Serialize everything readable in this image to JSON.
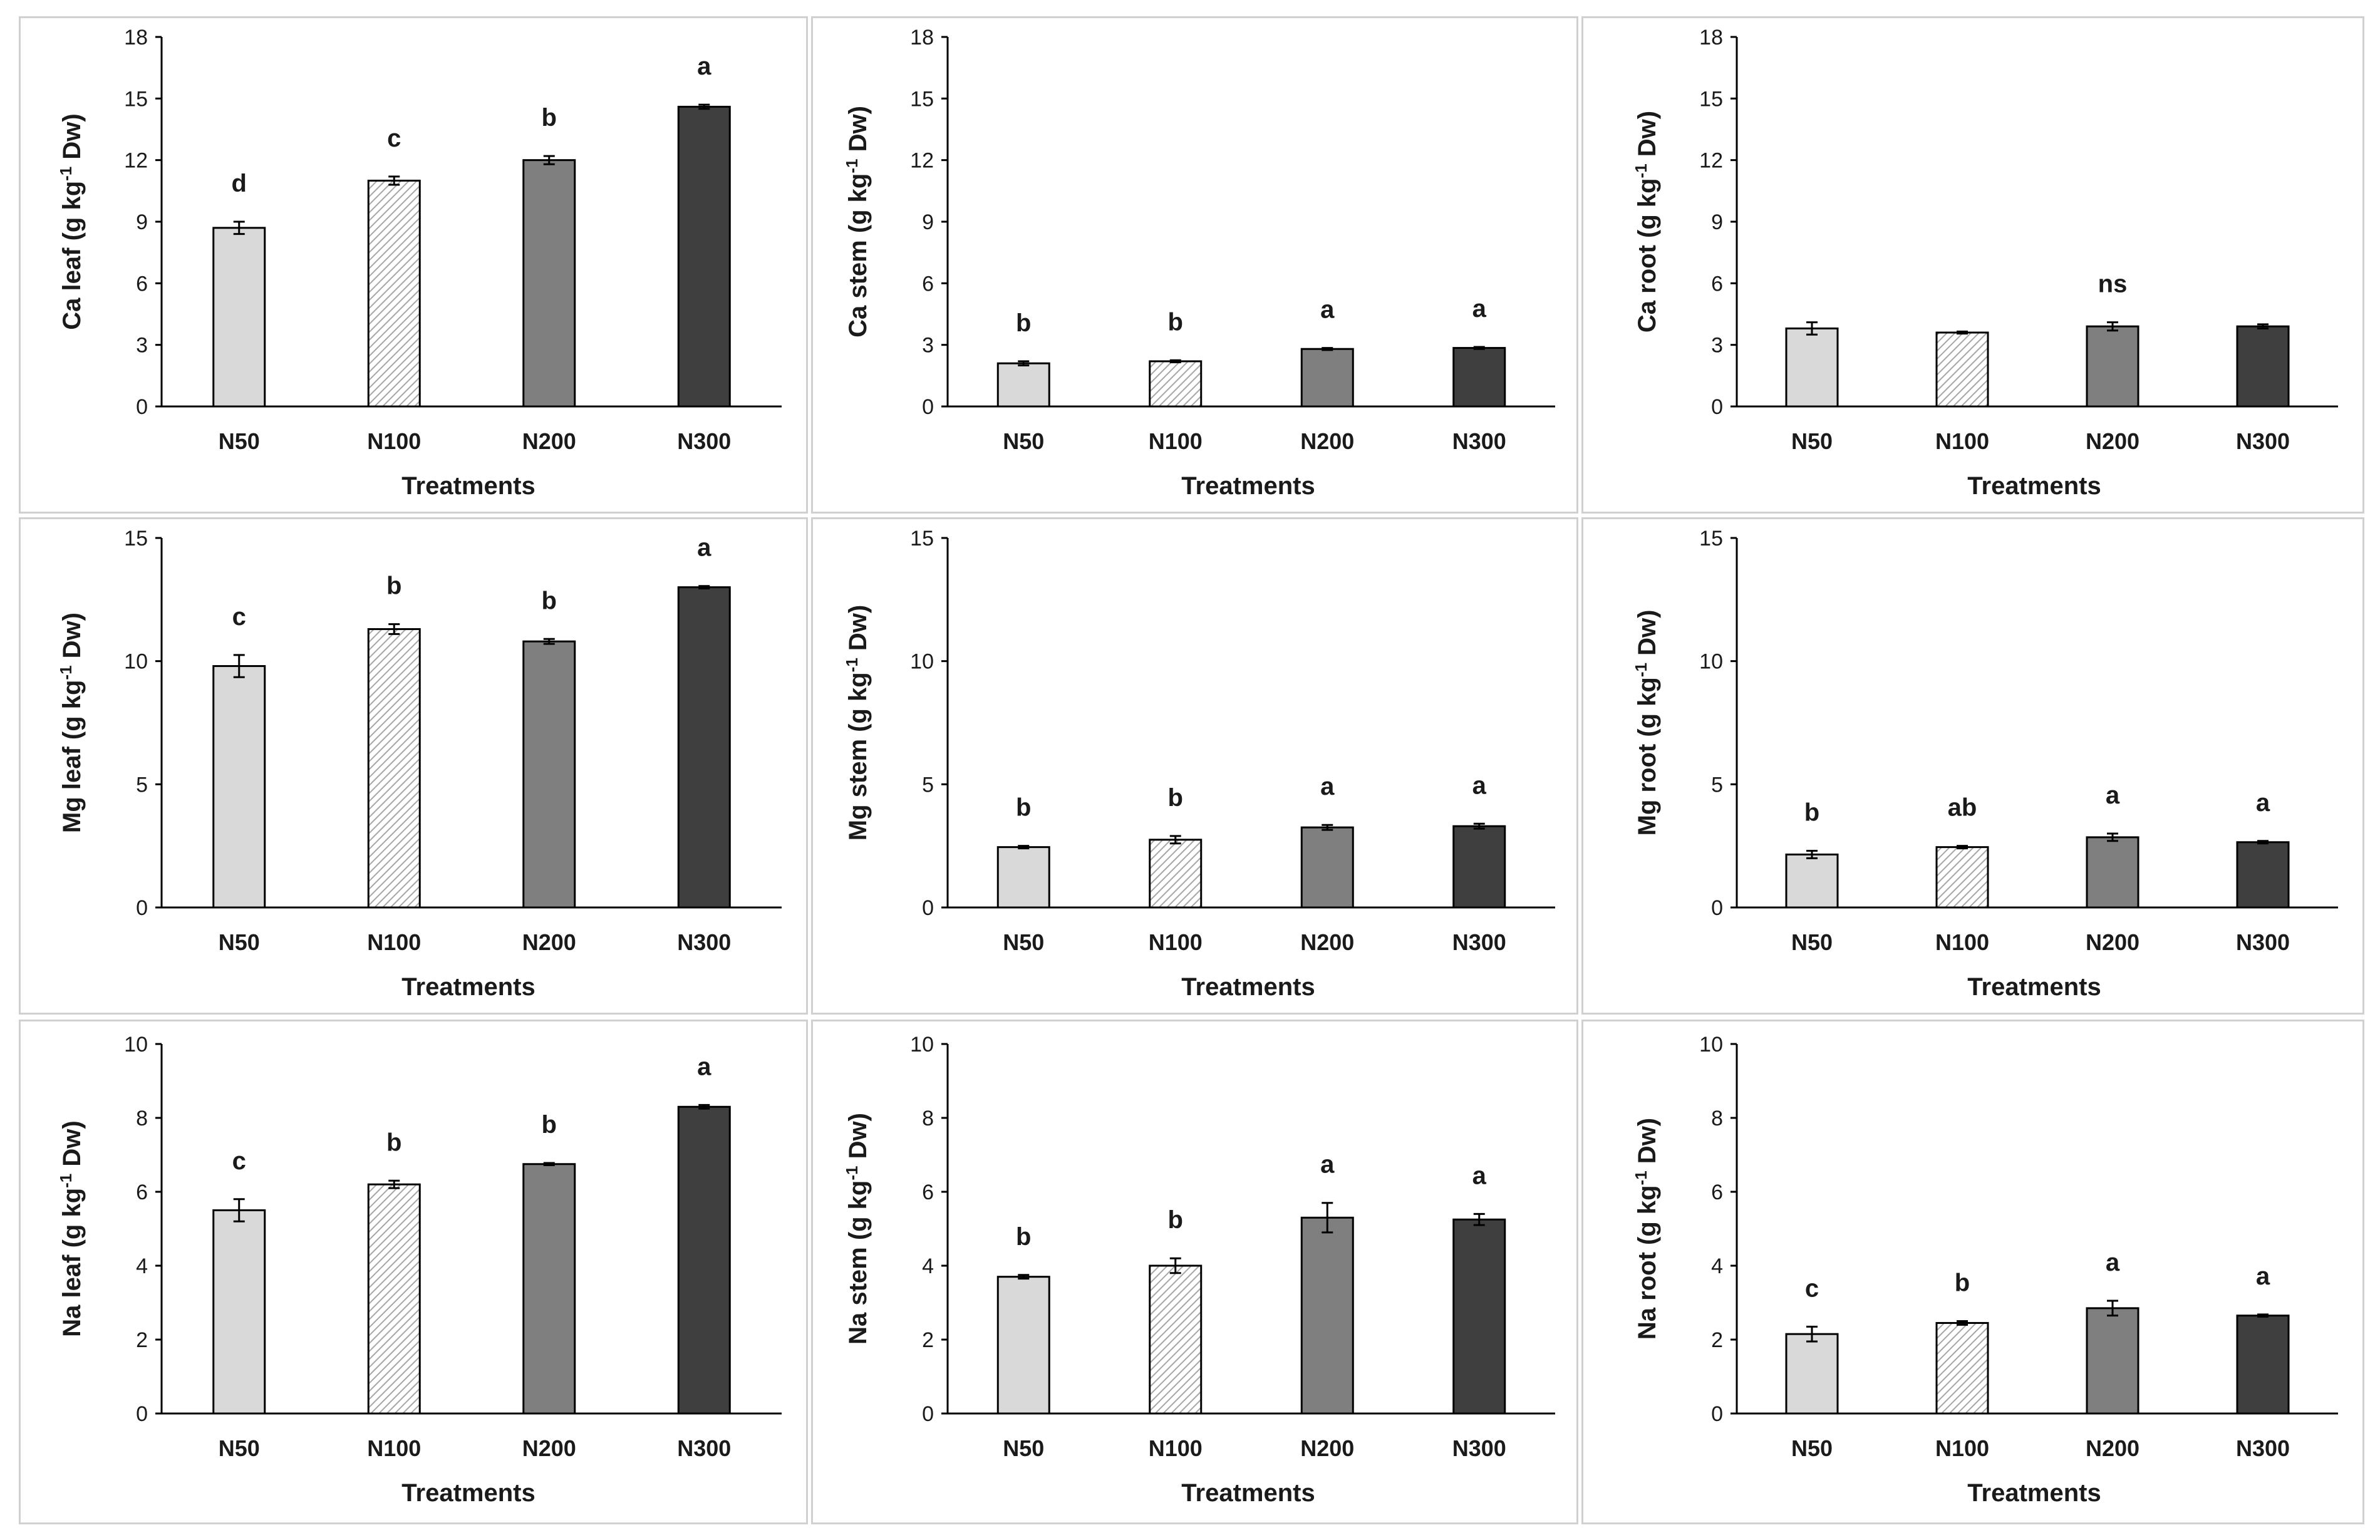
{
  "colors": {
    "N50": "#d9d9d9",
    "N100": "#ffffff",
    "N200": "#7f7f7f",
    "N300": "#3f3f3f",
    "hatch": "#a6a6a6",
    "outline": "#000000"
  },
  "chart_data": [
    {
      "id": "ca-leaf",
      "type": "bar",
      "ylabel": "Ca leaf (g kg-1 Dw)",
      "ylabel_parts": {
        "pre": "Ca leaf (g kg",
        "sup": "-1",
        "post": " Dw)"
      },
      "xlabel": "Treatments",
      "categories": [
        "N50",
        "N100",
        "N200",
        "N300"
      ],
      "ylim": [
        0,
        18
      ],
      "yticks": [
        "0",
        "3",
        "6",
        "9",
        "12",
        "15",
        "18"
      ],
      "values": [
        8.7,
        11.0,
        12.0,
        14.6
      ],
      "errors": [
        0.3,
        0.2,
        0.2,
        0.1
      ],
      "letters": [
        "d",
        "c",
        "b",
        "a"
      ]
    },
    {
      "id": "ca-stem",
      "type": "bar",
      "ylabel": "Ca stem (g kg-1 Dw)",
      "ylabel_parts": {
        "pre": "Ca stem (g kg",
        "sup": "-1",
        "post": " Dw)"
      },
      "xlabel": "Treatments",
      "categories": [
        "N50",
        "N100",
        "N200",
        "N300"
      ],
      "ylim": [
        0,
        18
      ],
      "yticks": [
        "0",
        "3",
        "6",
        "9",
        "12",
        "15",
        "18"
      ],
      "values": [
        2.1,
        2.2,
        2.8,
        2.85
      ],
      "errors": [
        0.1,
        0.05,
        0.05,
        0.05
      ],
      "letters": [
        "b",
        "b",
        "a",
        "a"
      ]
    },
    {
      "id": "ca-root",
      "type": "bar",
      "ylabel": "Ca root (g kg-1 Dw)",
      "ylabel_parts": {
        "pre": "Ca root (g kg",
        "sup": "-1",
        "post": " Dw)"
      },
      "xlabel": "Treatments",
      "categories": [
        "N50",
        "N100",
        "N200",
        "N300"
      ],
      "ylim": [
        0,
        18
      ],
      "yticks": [
        "0",
        "3",
        "6",
        "9",
        "12",
        "15",
        "18"
      ],
      "values": [
        3.8,
        3.6,
        3.9,
        3.9
      ],
      "errors": [
        0.3,
        0.05,
        0.2,
        0.1
      ],
      "letters": [
        "",
        "",
        "ns",
        ""
      ]
    },
    {
      "id": "mg-leaf",
      "type": "bar",
      "ylabel": "Mg leaf (g kg-1 Dw)",
      "ylabel_parts": {
        "pre": "Mg leaf (g kg",
        "sup": "-1",
        "post": " Dw)"
      },
      "xlabel": "Treatments",
      "categories": [
        "N50",
        "N100",
        "N200",
        "N300"
      ],
      "ylim": [
        0,
        15
      ],
      "yticks": [
        "0",
        "5",
        "10",
        "15"
      ],
      "values": [
        9.8,
        11.3,
        10.8,
        13.0
      ],
      "errors": [
        0.45,
        0.2,
        0.1,
        0.05
      ],
      "letters": [
        "c",
        "b",
        "b",
        "a"
      ]
    },
    {
      "id": "mg-stem",
      "type": "bar",
      "ylabel": "Mg stem (g kg-1 Dw)",
      "ylabel_parts": {
        "pre": "Mg stem (g kg",
        "sup": "-1",
        "post": " Dw)"
      },
      "xlabel": "Treatments",
      "categories": [
        "N50",
        "N100",
        "N200",
        "N300"
      ],
      "ylim": [
        0,
        15
      ],
      "yticks": [
        "0",
        "5",
        "10",
        "15"
      ],
      "values": [
        2.45,
        2.75,
        3.25,
        3.3
      ],
      "errors": [
        0.05,
        0.15,
        0.1,
        0.1
      ],
      "letters": [
        "b",
        "b",
        "a",
        "a"
      ]
    },
    {
      "id": "mg-root",
      "type": "bar",
      "ylabel": "Mg root (g kg-1 Dw)",
      "ylabel_parts": {
        "pre": "Mg root (g kg",
        "sup": "-1",
        "post": " Dw)"
      },
      "xlabel": "Treatments",
      "categories": [
        "N50",
        "N100",
        "N200",
        "N300"
      ],
      "ylim": [
        0,
        15
      ],
      "yticks": [
        "0",
        "5",
        "10",
        "15"
      ],
      "values": [
        2.15,
        2.45,
        2.85,
        2.65
      ],
      "errors": [
        0.15,
        0.05,
        0.15,
        0.05
      ],
      "letters": [
        "b",
        "ab",
        "a",
        "a"
      ]
    },
    {
      "id": "na-leaf",
      "type": "bar",
      "ylabel": "Na leaf (g kg-1 Dw)",
      "ylabel_parts": {
        "pre": "Na leaf (g kg",
        "sup": "-1",
        "post": " Dw)"
      },
      "xlabel": "Treatments",
      "categories": [
        "N50",
        "N100",
        "N200",
        "N300"
      ],
      "ylim": [
        0,
        10
      ],
      "yticks": [
        "0",
        "2",
        "4",
        "6",
        "8",
        "10"
      ],
      "values": [
        5.5,
        6.2,
        6.75,
        8.3
      ],
      "errors": [
        0.3,
        0.1,
        0.03,
        0.05
      ],
      "letters": [
        "c",
        "b",
        "b",
        "a"
      ]
    },
    {
      "id": "na-stem",
      "type": "bar",
      "ylabel": "Na stem (g kg-1 Dw)",
      "ylabel_parts": {
        "pre": "Na stem (g kg",
        "sup": "-1",
        "post": " Dw)"
      },
      "xlabel": "Treatments",
      "categories": [
        "N50",
        "N100",
        "N200",
        "N300"
      ],
      "ylim": [
        0,
        10
      ],
      "yticks": [
        "0",
        "2",
        "4",
        "6",
        "8",
        "10"
      ],
      "values": [
        3.7,
        4.0,
        5.3,
        5.25
      ],
      "errors": [
        0.05,
        0.2,
        0.4,
        0.15
      ],
      "letters": [
        "b",
        "b",
        "a",
        "a"
      ]
    },
    {
      "id": "na-root",
      "type": "bar",
      "ylabel": "Na root (g kg-1 Dw)",
      "ylabel_parts": {
        "pre": "Na root (g kg",
        "sup": "-1",
        "post": " Dw)"
      },
      "xlabel": "Treatments",
      "categories": [
        "N50",
        "N100",
        "N200",
        "N300"
      ],
      "ylim": [
        0,
        10
      ],
      "yticks": [
        "0",
        "2",
        "4",
        "6",
        "8",
        "10"
      ],
      "values": [
        2.15,
        2.45,
        2.85,
        2.65
      ],
      "errors": [
        0.2,
        0.05,
        0.2,
        0.03
      ],
      "letters": [
        "c",
        "b",
        "a",
        "a"
      ]
    }
  ]
}
